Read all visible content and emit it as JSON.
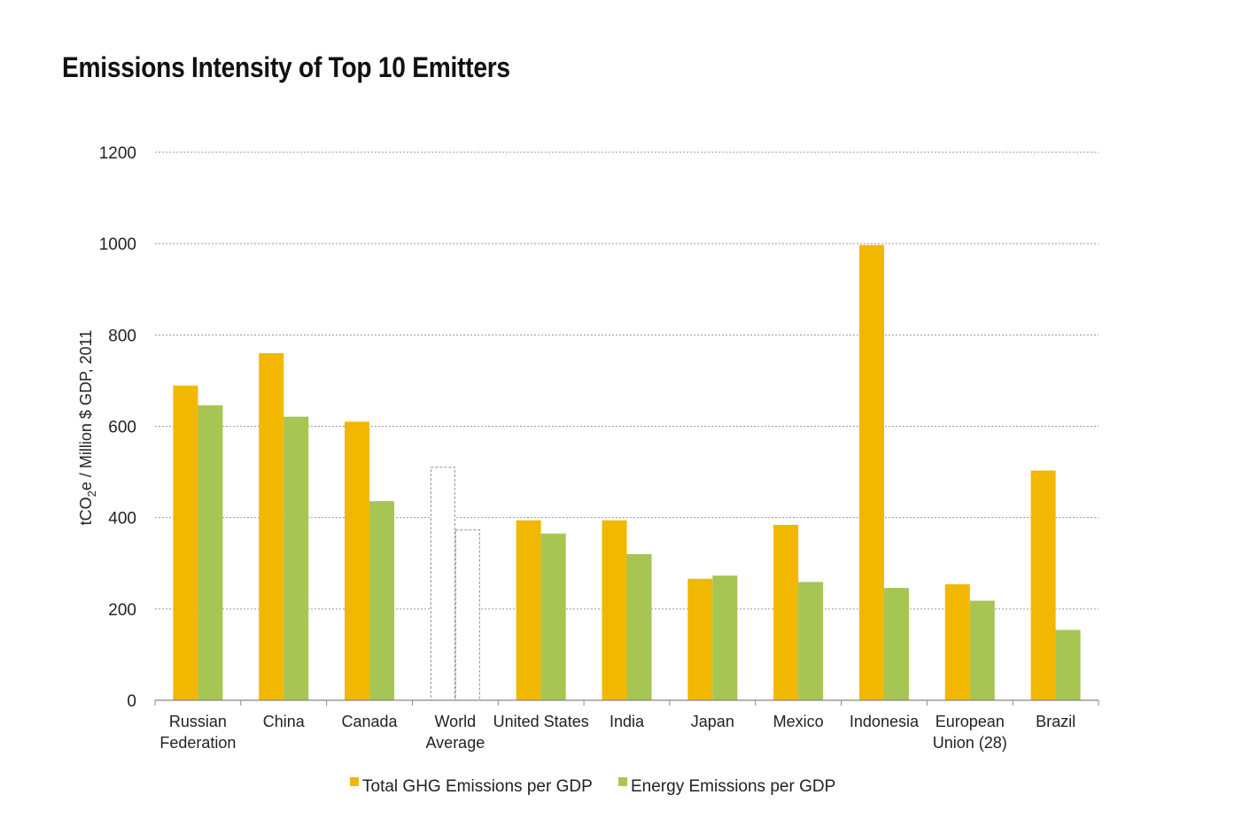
{
  "chart_data": {
    "type": "bar",
    "title": "Emissions Intensity of Top 10 Emitters",
    "xlabel": "",
    "ylabel_parts": [
      "tCO",
      "2",
      "e / Million $ GDP, 2011"
    ],
    "ylim": [
      0,
      1200
    ],
    "yticks": [
      "0",
      "200",
      "400",
      "600",
      "800",
      "1000",
      "1200"
    ],
    "grid": true,
    "legend_position": "bottom-center",
    "categories": [
      [
        "Russian",
        "Federation"
      ],
      [
        "China"
      ],
      [
        "Canada"
      ],
      [
        "World",
        "Average"
      ],
      [
        "United States"
      ],
      [
        "India"
      ],
      [
        "Japan"
      ],
      [
        "Mexico"
      ],
      [
        "Indonesia"
      ],
      [
        "European",
        "Union (28)"
      ],
      [
        "Brazil"
      ]
    ],
    "highlight_outline_category_index": 3,
    "series": [
      {
        "name": "Total GHG Emissions per GDP",
        "color": "#F2B700",
        "values": [
          689,
          760,
          610,
          510,
          394,
          394,
          266,
          384,
          997,
          254,
          503
        ]
      },
      {
        "name": "Energy Emissions per GDP",
        "color": "#A6C552",
        "values": [
          646,
          621,
          436,
          373,
          365,
          320,
          273,
          259,
          246,
          218,
          154
        ]
      }
    ]
  }
}
